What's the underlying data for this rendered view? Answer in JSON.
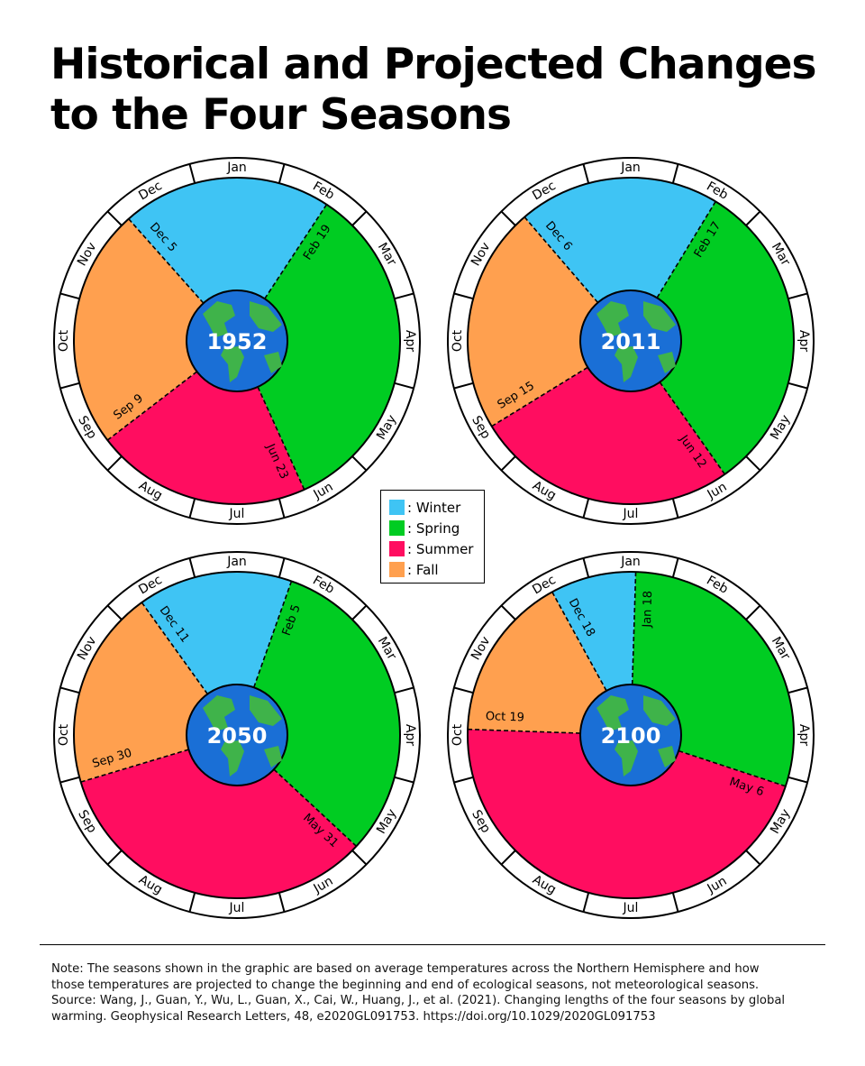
{
  "title": {
    "line1": "Historical and Projected Changes",
    "line2": "to the Four Seasons"
  },
  "legend": [
    {
      "label": ": Winter",
      "color": "#3fc4f4"
    },
    {
      "label": ": Spring",
      "color": "#00cc22"
    },
    {
      "label": ": Summer",
      "color": "#ff0d60"
    },
    {
      "label": ": Fall",
      "color": "#ffa04f"
    }
  ],
  "chart_data": [
    {
      "type": "pie",
      "center_label": "1952",
      "months": [
        "Jan",
        "Feb",
        "Mar",
        "Apr",
        "May",
        "Jun",
        "Jul",
        "Aug",
        "Sep",
        "Oct",
        "Nov",
        "Dec"
      ],
      "boundaries": [
        {
          "label": "Dec 5",
          "month": 12,
          "day": 5
        },
        {
          "label": "Feb 19",
          "month": 2,
          "day": 19
        },
        {
          "label": "Jun 23",
          "month": 6,
          "day": 23
        },
        {
          "label": "Sep 9",
          "month": 9,
          "day": 9
        }
      ],
      "seasons": [
        {
          "name": "Winter",
          "start": "Dec 5",
          "end": "Feb 19",
          "color": "#3fc4f4"
        },
        {
          "name": "Spring",
          "start": "Feb 19",
          "end": "Jun 23",
          "color": "#00cc22"
        },
        {
          "name": "Summer",
          "start": "Jun 23",
          "end": "Sep 9",
          "color": "#ff0d60"
        },
        {
          "name": "Fall",
          "start": "Sep 9",
          "end": "Dec 5",
          "color": "#ffa04f"
        }
      ]
    },
    {
      "type": "pie",
      "center_label": "2011",
      "months": [
        "Jan",
        "Feb",
        "Mar",
        "Apr",
        "May",
        "Jun",
        "Jul",
        "Aug",
        "Sep",
        "Oct",
        "Nov",
        "Dec"
      ],
      "boundaries": [
        {
          "label": "Dec 6",
          "month": 12,
          "day": 6
        },
        {
          "label": "Feb 17",
          "month": 2,
          "day": 17
        },
        {
          "label": "Jun 12",
          "month": 6,
          "day": 12
        },
        {
          "label": "Sep 15",
          "month": 9,
          "day": 15
        }
      ],
      "seasons": [
        {
          "name": "Winter",
          "start": "Dec 6",
          "end": "Feb 17",
          "color": "#3fc4f4"
        },
        {
          "name": "Spring",
          "start": "Feb 17",
          "end": "Jun 12",
          "color": "#00cc22"
        },
        {
          "name": "Summer",
          "start": "Jun 12",
          "end": "Sep 15",
          "color": "#ff0d60"
        },
        {
          "name": "Fall",
          "start": "Sep 15",
          "end": "Dec 6",
          "color": "#ffa04f"
        }
      ]
    },
    {
      "type": "pie",
      "center_label": "2050",
      "months": [
        "Jan",
        "Feb",
        "Mar",
        "Apr",
        "May",
        "Jun",
        "Jul",
        "Aug",
        "Sep",
        "Oct",
        "Nov",
        "Dec"
      ],
      "boundaries": [
        {
          "label": "Dec 11",
          "month": 12,
          "day": 11
        },
        {
          "label": "Feb 5",
          "month": 2,
          "day": 5
        },
        {
          "label": "May 31",
          "month": 5,
          "day": 31
        },
        {
          "label": "Sep 30",
          "month": 9,
          "day": 30
        }
      ],
      "seasons": [
        {
          "name": "Winter",
          "start": "Dec 11",
          "end": "Feb 5",
          "color": "#3fc4f4"
        },
        {
          "name": "Spring",
          "start": "Feb 5",
          "end": "May 31",
          "color": "#00cc22"
        },
        {
          "name": "Summer",
          "start": "May 31",
          "end": "Sep 30",
          "color": "#ff0d60"
        },
        {
          "name": "Fall",
          "start": "Sep 30",
          "end": "Dec 11",
          "color": "#ffa04f"
        }
      ]
    },
    {
      "type": "pie",
      "center_label": "2100",
      "months": [
        "Jan",
        "Feb",
        "Mar",
        "Apr",
        "May",
        "Jun",
        "Jul",
        "Aug",
        "Sep",
        "Oct",
        "Nov",
        "Dec"
      ],
      "boundaries": [
        {
          "label": "Dec 18",
          "month": 12,
          "day": 18
        },
        {
          "label": "Jan 18",
          "month": 1,
          "day": 18
        },
        {
          "label": "May 6",
          "month": 5,
          "day": 6
        },
        {
          "label": "Oct 19",
          "month": 10,
          "day": 19
        }
      ],
      "seasons": [
        {
          "name": "Winter",
          "start": "Dec 18",
          "end": "Jan 18",
          "color": "#3fc4f4"
        },
        {
          "name": "Spring",
          "start": "Jan 18",
          "end": "May 6",
          "color": "#00cc22"
        },
        {
          "name": "Summer",
          "start": "May 6",
          "end": "Oct 19",
          "color": "#ff0d60"
        },
        {
          "name": "Fall",
          "start": "Oct 19",
          "end": "Dec 18",
          "color": "#ffa04f"
        }
      ]
    }
  ],
  "note": {
    "line1": "Note: The seasons shown in the graphic are based on average temperatures across the Northern Hemisphere and how",
    "line2": "those temperatures are projected to change the beginning and end of ecological seasons, not meteorological seasons.",
    "line3": "Source: Wang, J., Guan, Y., Wu, L., Guan, X., Cai, W., Huang, J., et al. (2021). Changing lengths of the four seasons by global",
    "line4": "warming. Geophysical Research Letters, 48, e2020GL091753. https://doi.org/10.1029/2020GL091753"
  }
}
